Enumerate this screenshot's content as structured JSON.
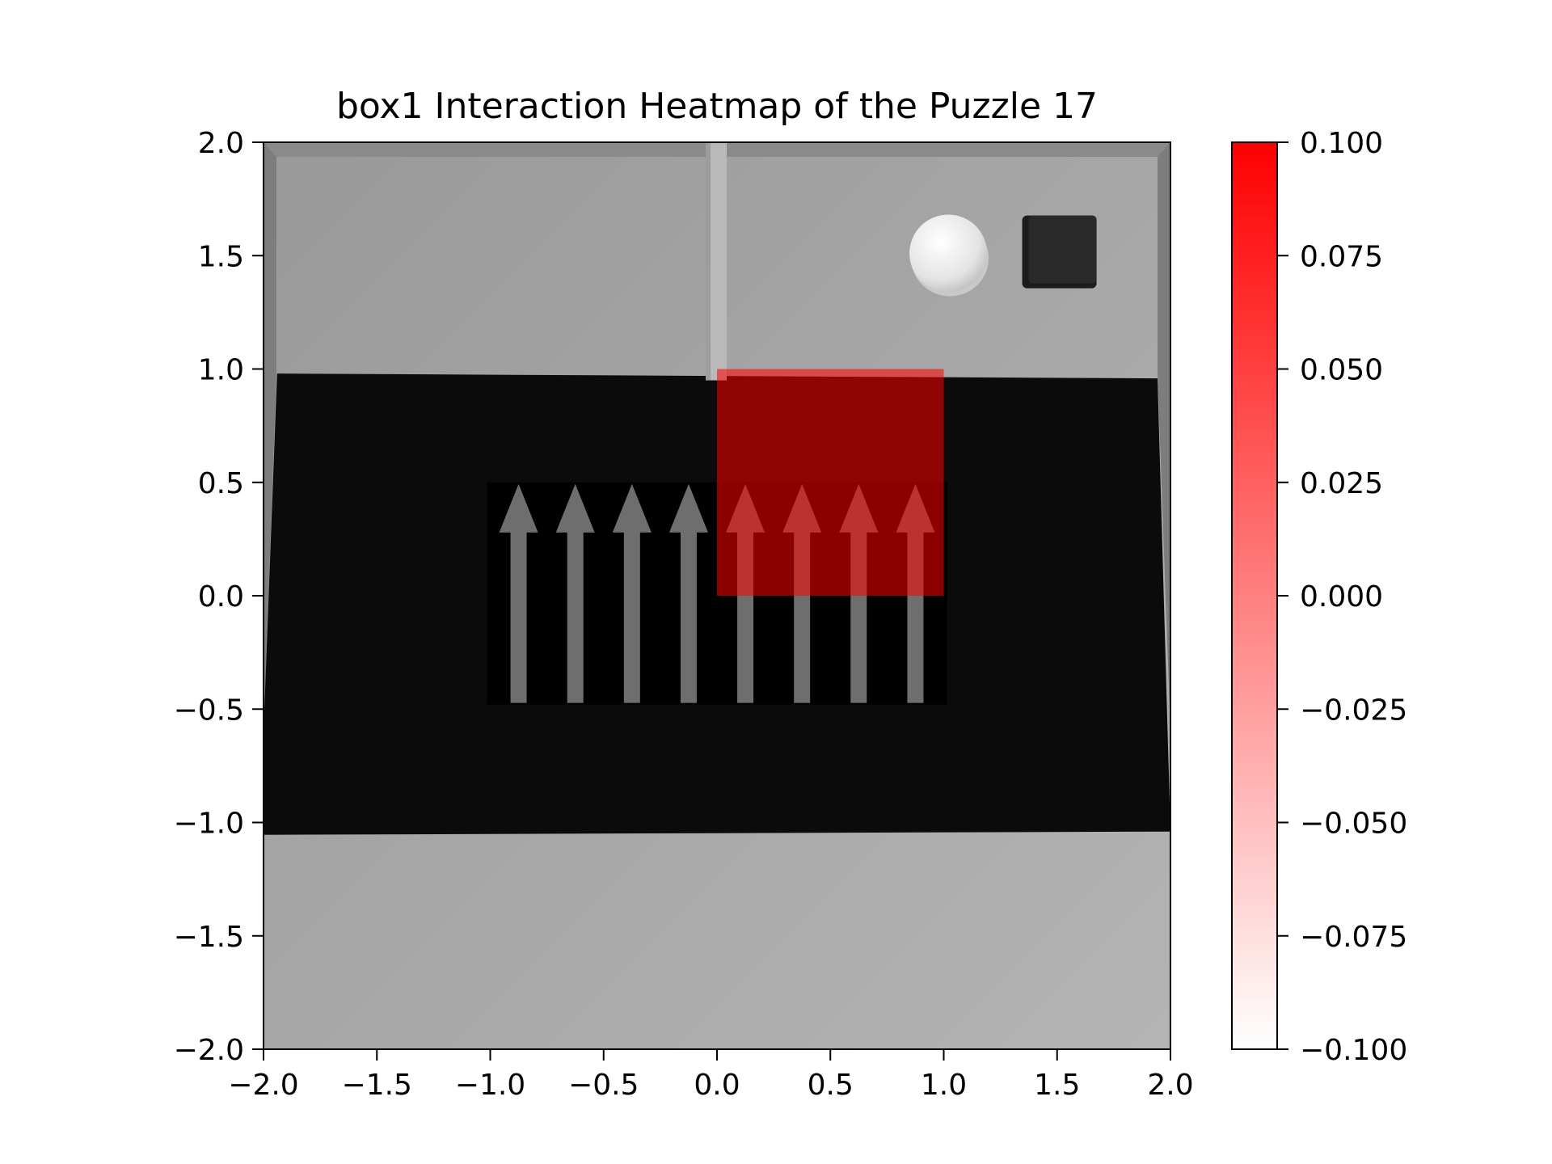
{
  "chart_data": {
    "type": "heatmap",
    "title": "box1 Interaction Heatmap of the Puzzle 17",
    "xlabel": "",
    "ylabel": "",
    "xlim": [
      -2.0,
      2.0
    ],
    "ylim": [
      -2.0,
      2.0
    ],
    "x_ticks": [
      "−2.0",
      "−1.5",
      "−1.0",
      "−0.5",
      "0.0",
      "0.5",
      "1.0",
      "1.5",
      "2.0"
    ],
    "x_tick_values": [
      -2.0,
      -1.5,
      -1.0,
      -0.5,
      0.0,
      0.5,
      1.0,
      1.5,
      2.0
    ],
    "y_ticks": [
      "−2.0",
      "−1.5",
      "−1.0",
      "−0.5",
      "0.0",
      "0.5",
      "1.0",
      "1.5",
      "2.0"
    ],
    "y_tick_values": [
      -2.0,
      -1.5,
      -1.0,
      -0.5,
      0.0,
      0.5,
      1.0,
      1.5,
      2.0
    ],
    "cells": [
      {
        "x": [
          0.0,
          1.0
        ],
        "y": [
          0.0,
          1.0
        ],
        "value": 0.1
      }
    ],
    "colorbar": {
      "min": -0.1,
      "max": 0.1,
      "color_low": "#ffffff",
      "color_high": "#ff0000",
      "ticks": [
        "0.100",
        "0.075",
        "0.050",
        "0.025",
        "0.000",
        "−0.025",
        "−0.050",
        "−0.075",
        "−0.100"
      ],
      "tick_values": [
        0.1,
        0.075,
        0.05,
        0.025,
        0.0,
        -0.025,
        -0.05,
        -0.075,
        -0.1
      ]
    },
    "background_scene": {
      "floor_color": "#a8a8a8",
      "dark_region_color": "#0b0b0b",
      "dark_region_x": [
        -1.94,
        2.0
      ],
      "dark_region_y": [
        -1.04,
        0.98
      ],
      "arrow_region_x": [
        -1.0,
        1.0
      ],
      "arrow_region_y": [
        -0.48,
        0.5
      ],
      "arrow_count": 8,
      "arrow_direction": "up",
      "arrow_color": "#6e6e6e",
      "pole_x": 0.0,
      "pole_y_range": [
        0.95,
        2.0
      ],
      "ball_center": [
        1.02,
        1.51
      ],
      "ball_color": "#e6e6e6",
      "cube_center": [
        1.51,
        1.52
      ],
      "cube_color": "#2a2a2a"
    }
  }
}
